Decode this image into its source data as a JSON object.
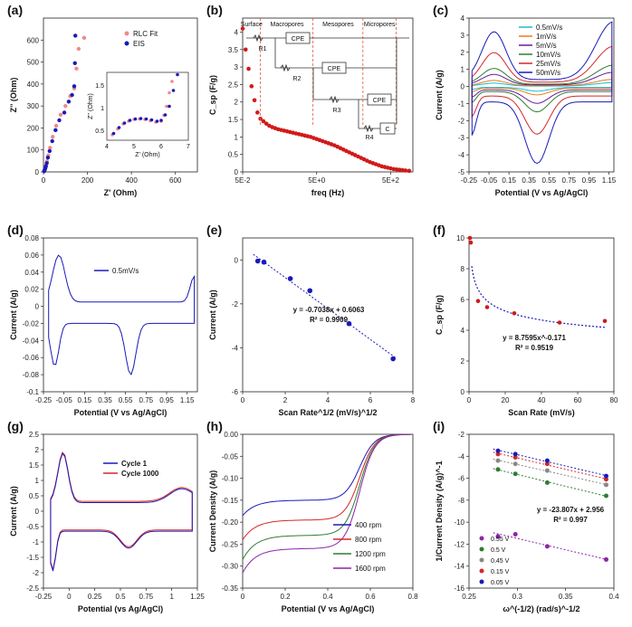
{
  "figure": {
    "background": "#ffffff"
  },
  "chart_data": [
    {
      "panel": "(a)",
      "type": "scatter",
      "xlabel": "Z' (Ohm)",
      "ylabel": "Z'' (Ohm)",
      "xlim": [
        0,
        700
      ],
      "ylim": [
        0,
        700
      ],
      "xticks": [
        "0",
        "200",
        "400",
        "600"
      ],
      "yticks": [
        "0",
        "100",
        "200",
        "300",
        "400",
        "500",
        "600"
      ],
      "legend": [
        "RLC Fit",
        "EIS"
      ],
      "series": [
        {
          "name": "RLC Fit",
          "color": "#f08a8a",
          "x": [
            4,
            6,
            9,
            12,
            16,
            22,
            30,
            42,
            58,
            78,
            100,
            122,
            140,
            150,
            160,
            185
          ],
          "y": [
            4,
            10,
            18,
            30,
            48,
            75,
            110,
            160,
            210,
            260,
            300,
            345,
            380,
            470,
            560,
            610
          ]
        },
        {
          "name": "EIS",
          "color": "#1a1ab8",
          "x": [
            3,
            5,
            8,
            11,
            15,
            20,
            28,
            40,
            55,
            72,
            95,
            115,
            130,
            140,
            143,
            145
          ],
          "y": [
            3,
            8,
            15,
            25,
            40,
            65,
            95,
            140,
            190,
            235,
            270,
            320,
            350,
            390,
            495,
            620
          ]
        }
      ],
      "inset": {
        "xlabel": "Z' (Ohm)",
        "ylabel": "Z'' (Ohm)",
        "xlim": [
          4,
          7
        ],
        "ylim": [
          0.3,
          1.8
        ],
        "xticks": [
          "4",
          "5",
          "6",
          "7"
        ],
        "yticks": [
          "0.5",
          "1",
          "1.5"
        ],
        "series": [
          {
            "name": "RLC Fit",
            "color": "#f08a8a",
            "x": [
              4.2,
              4.4,
              4.6,
              4.8,
              5.0,
              5.2,
              5.4,
              5.6,
              5.8,
              6.0,
              6.1,
              6.2,
              6.3,
              6.4
            ],
            "y": [
              0.42,
              0.55,
              0.66,
              0.72,
              0.76,
              0.77,
              0.76,
              0.73,
              0.7,
              0.72,
              0.85,
              1.05,
              1.35,
              1.6
            ]
          },
          {
            "name": "EIS",
            "color": "#1a1ab8",
            "x": [
              4.25,
              4.45,
              4.65,
              4.85,
              5.05,
              5.25,
              5.45,
              5.65,
              5.85,
              6.0,
              6.15,
              6.3,
              6.45,
              6.6
            ],
            "y": [
              0.45,
              0.58,
              0.68,
              0.74,
              0.77,
              0.78,
              0.77,
              0.75,
              0.72,
              0.74,
              0.86,
              1.05,
              1.4,
              1.75
            ]
          }
        ]
      }
    },
    {
      "panel": "(b)",
      "type": "scatter",
      "xlabel": "freq (Hz)",
      "ylabel": "C_sp (F/g)",
      "xlim": [
        -1.3,
        3.3
      ],
      "ylim": [
        0,
        4.4
      ],
      "xticks": [
        "5E-2",
        "5E+0",
        "5E+2"
      ],
      "yticks": [
        "0",
        "0.5",
        "1",
        "1.5",
        "2",
        "2.5",
        "3",
        "3.5",
        "4"
      ],
      "regions": [
        "Surface",
        "Macropores",
        "Mesopores",
        "Micropores"
      ],
      "circuit": [
        "R1",
        "CPE",
        "R2",
        "CPE",
        "R3",
        "CPE",
        "R4",
        "C"
      ],
      "series": [
        {
          "name": "Csp",
          "color": "#d11a1a",
          "x": [
            -1.3,
            -1.22,
            -1.14,
            -1.06,
            -0.98,
            -0.9,
            -0.82,
            -0.74,
            -0.66,
            -0.58,
            -0.5,
            -0.42,
            -0.34,
            -0.26,
            -0.18,
            -0.1,
            -0.02,
            0.06,
            0.14,
            0.22,
            0.3,
            0.38,
            0.46,
            0.54,
            0.62,
            0.7,
            0.78,
            0.86,
            0.94,
            1.02,
            1.1,
            1.18,
            1.26,
            1.34,
            1.42,
            1.5,
            1.58,
            1.66,
            1.74,
            1.82,
            1.9,
            1.98,
            2.06,
            2.14,
            2.22,
            2.3,
            2.38,
            2.46,
            2.54,
            2.62,
            2.7,
            2.78,
            2.86,
            2.94,
            3.02,
            3.1,
            3.2
          ],
          "y": [
            4.1,
            3.5,
            2.95,
            2.45,
            2.05,
            1.7,
            1.52,
            1.45,
            1.38,
            1.32,
            1.28,
            1.25,
            1.22,
            1.2,
            1.18,
            1.16,
            1.14,
            1.12,
            1.1,
            1.08,
            1.06,
            1.04,
            1.02,
            1.0,
            0.97,
            0.94,
            0.91,
            0.88,
            0.85,
            0.82,
            0.79,
            0.76,
            0.72,
            0.68,
            0.64,
            0.6,
            0.56,
            0.52,
            0.48,
            0.44,
            0.4,
            0.36,
            0.32,
            0.28,
            0.25,
            0.22,
            0.19,
            0.16,
            0.14,
            0.12,
            0.1,
            0.08,
            0.07,
            0.06,
            0.05,
            0.04,
            0.03
          ]
        }
      ]
    },
    {
      "panel": "(c)",
      "type": "line",
      "xlabel": "Potential (V vs Ag/AgCl)",
      "ylabel": "Current (A/g)",
      "xlim": [
        -0.25,
        1.2
      ],
      "ylim": [
        -5,
        4
      ],
      "xticks": [
        "-0.25",
        "-0.05",
        "0.15",
        "0.35",
        "0.55",
        "0.75",
        "0.95",
        "1.15"
      ],
      "yticks": [
        "-5",
        "-4",
        "-3",
        "-2",
        "-1",
        "0",
        "1",
        "2",
        "3",
        "4"
      ],
      "series": [
        {
          "name": "0.5mV/s",
          "color": "#17becf",
          "scale": 0.06
        },
        {
          "name": "1mV/s",
          "color": "#e87d1e",
          "scale": 0.11
        },
        {
          "name": "5mV/s",
          "color": "#6a1b9a",
          "scale": 0.22
        },
        {
          "name": "10mV/s",
          "color": "#2e7d32",
          "scale": 0.33
        },
        {
          "name": "25mV/s",
          "color": "#d62728",
          "scale": 0.62
        },
        {
          "name": "50mV/s",
          "color": "#1a1ab8",
          "scale": 1.0
        }
      ]
    },
    {
      "panel": "(d)",
      "type": "line",
      "xlabel": "Potential (V vs Ag/AgCl)",
      "ylabel": "Current (A/g)",
      "xlim": [
        -0.25,
        1.25
      ],
      "ylim": [
        -0.1,
        0.08
      ],
      "xticks": [
        "-0.25",
        "-0.05",
        "0.15",
        "0.35",
        "0.55",
        "0.75",
        "0.95",
        "1.15"
      ],
      "yticks": [
        "-0.1",
        "-0.08",
        "-0.06",
        "-0.04",
        "-0.02",
        "0",
        "0.02",
        "0.04",
        "0.06",
        "0.08"
      ],
      "series": [
        {
          "name": "0.5mV/s",
          "color": "#1a1ab8"
        }
      ]
    },
    {
      "panel": "(e)",
      "type": "scatter",
      "xlabel": "Scan Rate^1/2 (mV/s)^1/2",
      "ylabel": "Current (A/g)",
      "xlim": [
        0,
        8
      ],
      "ylim": [
        -6,
        1
      ],
      "xticks": [
        "0",
        "2",
        "4",
        "6",
        "8"
      ],
      "yticks": [
        "-6",
        "-4",
        "-2",
        "0"
      ],
      "equation": "y = -0.7038x + 0.6063",
      "r2": "R² = 0.9909",
      "series": [
        {
          "name": "data",
          "color": "#1a1ab8",
          "x": [
            0.71,
            1.0,
            2.24,
            3.16,
            5.0,
            7.07
          ],
          "y": [
            -0.05,
            -0.1,
            -0.85,
            -1.4,
            -2.9,
            -4.5
          ]
        }
      ]
    },
    {
      "panel": "(f)",
      "type": "scatter",
      "xlabel": "Scan Rate (mV/s)",
      "ylabel": "C_sp (F/g)",
      "xlim": [
        0,
        80
      ],
      "ylim": [
        0,
        10
      ],
      "xticks": [
        "0",
        "20",
        "40",
        "60",
        "80"
      ],
      "yticks": [
        "0",
        "2",
        "4",
        "6",
        "8",
        "10"
      ],
      "equation": "y = 8.7595x^-0.171",
      "r2": "R² = 0.9519",
      "series": [
        {
          "name": "data",
          "color": "#d11a1a",
          "x": [
            0.5,
            1,
            5,
            10,
            25,
            50,
            75
          ],
          "y": [
            10.0,
            9.7,
            5.9,
            5.5,
            5.1,
            4.5,
            4.6
          ]
        }
      ]
    },
    {
      "panel": "(g)",
      "type": "line",
      "xlabel": "Potential (vs Ag/AgCl)",
      "ylabel": "Current (A/g)",
      "xlim": [
        -0.25,
        1.25
      ],
      "ylim": [
        -2.5,
        2.5
      ],
      "xticks": [
        "-0.25",
        "0",
        "0.25",
        "0.5",
        "0.75",
        "1",
        "1.25"
      ],
      "yticks": [
        "-2.5",
        "-2",
        "-1.5",
        "-1",
        "-0.5",
        "0",
        "0.5",
        "1",
        "1.5",
        "2",
        "2.5"
      ],
      "series": [
        {
          "name": "Cycle 1",
          "color": "#1a1ab8"
        },
        {
          "name": "Cycle 1000",
          "color": "#d62728"
        }
      ]
    },
    {
      "panel": "(h)",
      "type": "line",
      "xlabel": "Potential (V vs Ag/AgCl)",
      "ylabel": "Current Density (A/g)",
      "xlim": [
        0,
        0.8
      ],
      "ylim": [
        -0.35,
        0
      ],
      "xticks": [
        "0",
        "0.2",
        "0.4",
        "0.6",
        "0.8"
      ],
      "yticks": [
        "-0.35",
        "-0.30",
        "-0.25",
        "-0.20",
        "-0.15",
        "-0.10",
        "-0.05",
        "0.00"
      ],
      "series": [
        {
          "name": "400 rpm",
          "color": "#1a1ab8",
          "plateau": -0.15,
          "start": -0.185
        },
        {
          "name": "800 rpm",
          "color": "#d62728",
          "plateau": -0.195,
          "start": -0.24
        },
        {
          "name": "1200 rpm",
          "color": "#2e7d32",
          "plateau": -0.23,
          "start": -0.285
        },
        {
          "name": "1600 rpm",
          "color": "#8e24aa",
          "plateau": -0.26,
          "start": -0.315
        }
      ]
    },
    {
      "panel": "(i)",
      "type": "scatter",
      "xlabel": "ω^(-1/2) (rad/s)^-1/2",
      "ylabel": "1/Current Density (A/g)^-1",
      "xlim": [
        0.25,
        0.4
      ],
      "ylim": [
        -16,
        -2
      ],
      "xticks": [
        "0.25",
        "0.3",
        "0.35",
        "0.4"
      ],
      "yticks": [
        "-16",
        "-14",
        "-12",
        "-10",
        "-8",
        "-6",
        "-4",
        "-2"
      ],
      "equation": "y = -23.807x + 2.956",
      "r2": "R² = 0.997",
      "x": [
        0.28,
        0.298,
        0.331,
        0.392
      ],
      "series": [
        {
          "name": "0.55 V",
          "color": "#8e24aa",
          "y": [
            -11.3,
            -11.1,
            -12.2,
            -13.4
          ]
        },
        {
          "name": "0.5 V",
          "color": "#2e7d32",
          "y": [
            -5.2,
            -5.6,
            -6.4,
            -7.6
          ]
        },
        {
          "name": "0.45 V",
          "color": "#888888",
          "y": [
            -4.4,
            -4.7,
            -5.3,
            -6.6
          ]
        },
        {
          "name": "0.15 V",
          "color": "#d62728",
          "y": [
            -3.8,
            -4.1,
            -4.7,
            -6.1
          ]
        },
        {
          "name": "0.05 V",
          "color": "#1a1ab8",
          "y": [
            -3.5,
            -3.8,
            -4.4,
            -5.8
          ]
        }
      ]
    }
  ]
}
